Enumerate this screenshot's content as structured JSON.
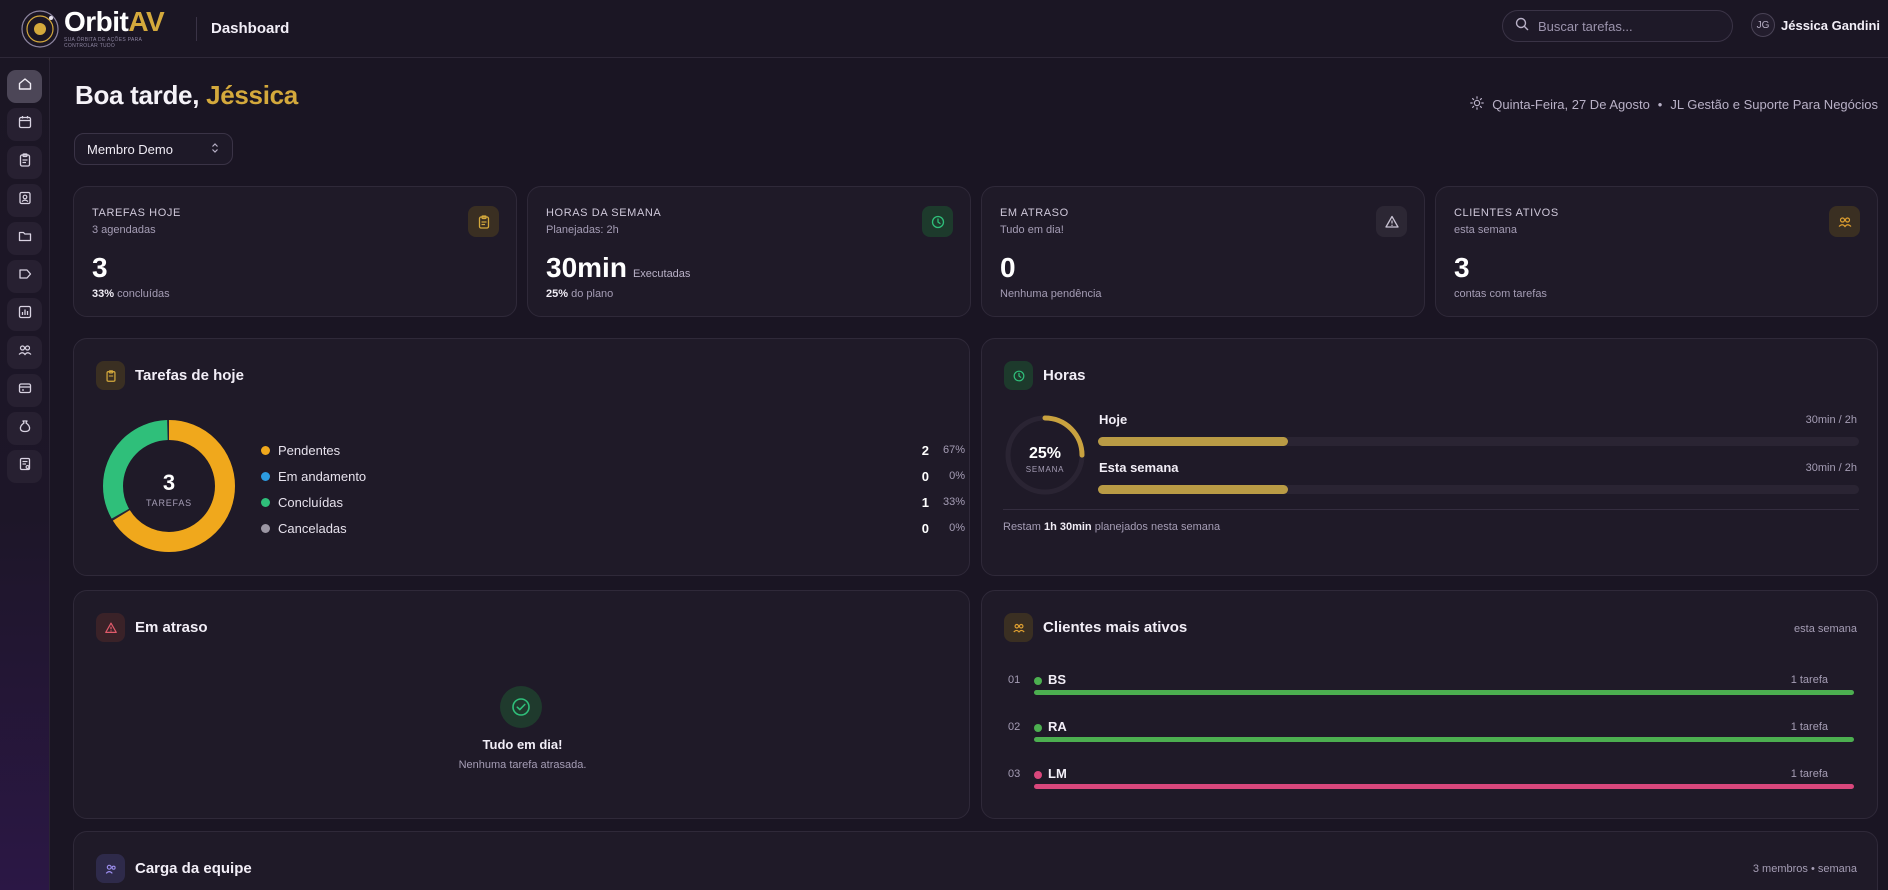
{
  "app": {
    "logo_primary": "Orbit",
    "logo_accent": "AV",
    "logo_tagline": "SUA ÓRBITA DE AÇÕES PARA CONTROLAR TUDO",
    "page_title": "Dashboard"
  },
  "search": {
    "placeholder": "Buscar tarefas..."
  },
  "user": {
    "initials": "JG",
    "name": "Jéssica Gandini"
  },
  "sidebar": {
    "items": [
      {
        "icon": "home-icon",
        "active": true
      },
      {
        "icon": "calendar-icon",
        "active": false
      },
      {
        "icon": "clipboard-icon",
        "active": false
      },
      {
        "icon": "contact-card-icon",
        "active": false
      },
      {
        "icon": "folder-icon",
        "active": false
      },
      {
        "icon": "tag-icon",
        "active": false
      },
      {
        "icon": "chart-icon",
        "active": false
      },
      {
        "icon": "users-icon",
        "active": false
      },
      {
        "icon": "wallet-icon",
        "active": false
      },
      {
        "icon": "money-bag-icon",
        "active": false
      },
      {
        "icon": "receipt-icon",
        "active": false
      }
    ]
  },
  "header": {
    "greeting": "Boa tarde,",
    "greeting_name": " Jéssica",
    "date": "Quinta-Feira, 27 De Agosto",
    "separator": "•",
    "company": "JL Gestão e Suporte Para Negócios",
    "member_select": "Membro Demo"
  },
  "stats": [
    {
      "label": "TAREFAS HOJE",
      "sub": "3 agendadas",
      "value": "3",
      "unit": "",
      "foot_bold": "33%",
      "foot": " concluídas",
      "icon": "clipboard-icon",
      "color": "#d4a93c"
    },
    {
      "label": "HORAS DA SEMANA",
      "sub": "Planejadas: 2h",
      "value": "30min",
      "unit": "Executadas",
      "foot_bold": "25%",
      "foot": " do plano",
      "icon": "clock-icon",
      "color": "#2fbf7a"
    },
    {
      "label": "EM ATRASO",
      "sub": "Tudo em dia!",
      "value": "0",
      "unit": "",
      "foot_bold": "",
      "foot": "Nenhuma pendência",
      "icon": "warning-icon",
      "color": "#c9c3d3"
    },
    {
      "label": "CLIENTES ATIVOS",
      "sub": "esta semana",
      "value": "3",
      "unit": "",
      "foot_bold": "",
      "foot": "contas com tarefas",
      "icon": "users-icon",
      "color": "#e0a030"
    }
  ],
  "tasks_today": {
    "title": "Tarefas de hoje",
    "center_value": "3",
    "center_label": "TAREFAS",
    "items": [
      {
        "label": "Pendentes",
        "count": "2",
        "pct": "67%",
        "color": "#f0a81c",
        "fraction": 0.667
      },
      {
        "label": "Em andamento",
        "count": "0",
        "pct": "0%",
        "color": "#2c9be0",
        "fraction": 0
      },
      {
        "label": "Concluídas",
        "count": "1",
        "pct": "33%",
        "color": "#2fbf7a",
        "fraction": 0.333
      },
      {
        "label": "Canceladas",
        "count": "0",
        "pct": "0%",
        "color": "#9b96a3",
        "fraction": 0
      }
    ]
  },
  "hours": {
    "title": "Horas",
    "ring_value": "25%",
    "ring_label": "SEMANA",
    "ring_fraction": 0.25,
    "rows": [
      {
        "label": "Hoje",
        "value": "30min",
        "total": " / 2h",
        "fraction": 0.25
      },
      {
        "label": "Esta semana",
        "value": "30min",
        "total": " / 2h",
        "fraction": 0.25
      }
    ],
    "remaining_pre": "Restam ",
    "remaining_bold": "1h 30min",
    "remaining_post": " planejados nesta semana"
  },
  "overdue": {
    "title": "Em atraso",
    "empty_title": "Tudo em dia!",
    "empty_sub": "Nenhuma tarefa atrasada."
  },
  "clients": {
    "title": "Clientes mais ativos",
    "period": "esta semana",
    "items": [
      {
        "rank": "01",
        "name": "BS",
        "count": "1 tarefa",
        "color": "#4caf50"
      },
      {
        "rank": "02",
        "name": "RA",
        "count": "1 tarefa",
        "color": "#4caf50"
      },
      {
        "rank": "03",
        "name": "LM",
        "count": "1 tarefa",
        "color": "#d9477c"
      }
    ]
  },
  "team": {
    "title": "Carga da equipe",
    "meta": "3 membros • semana"
  }
}
